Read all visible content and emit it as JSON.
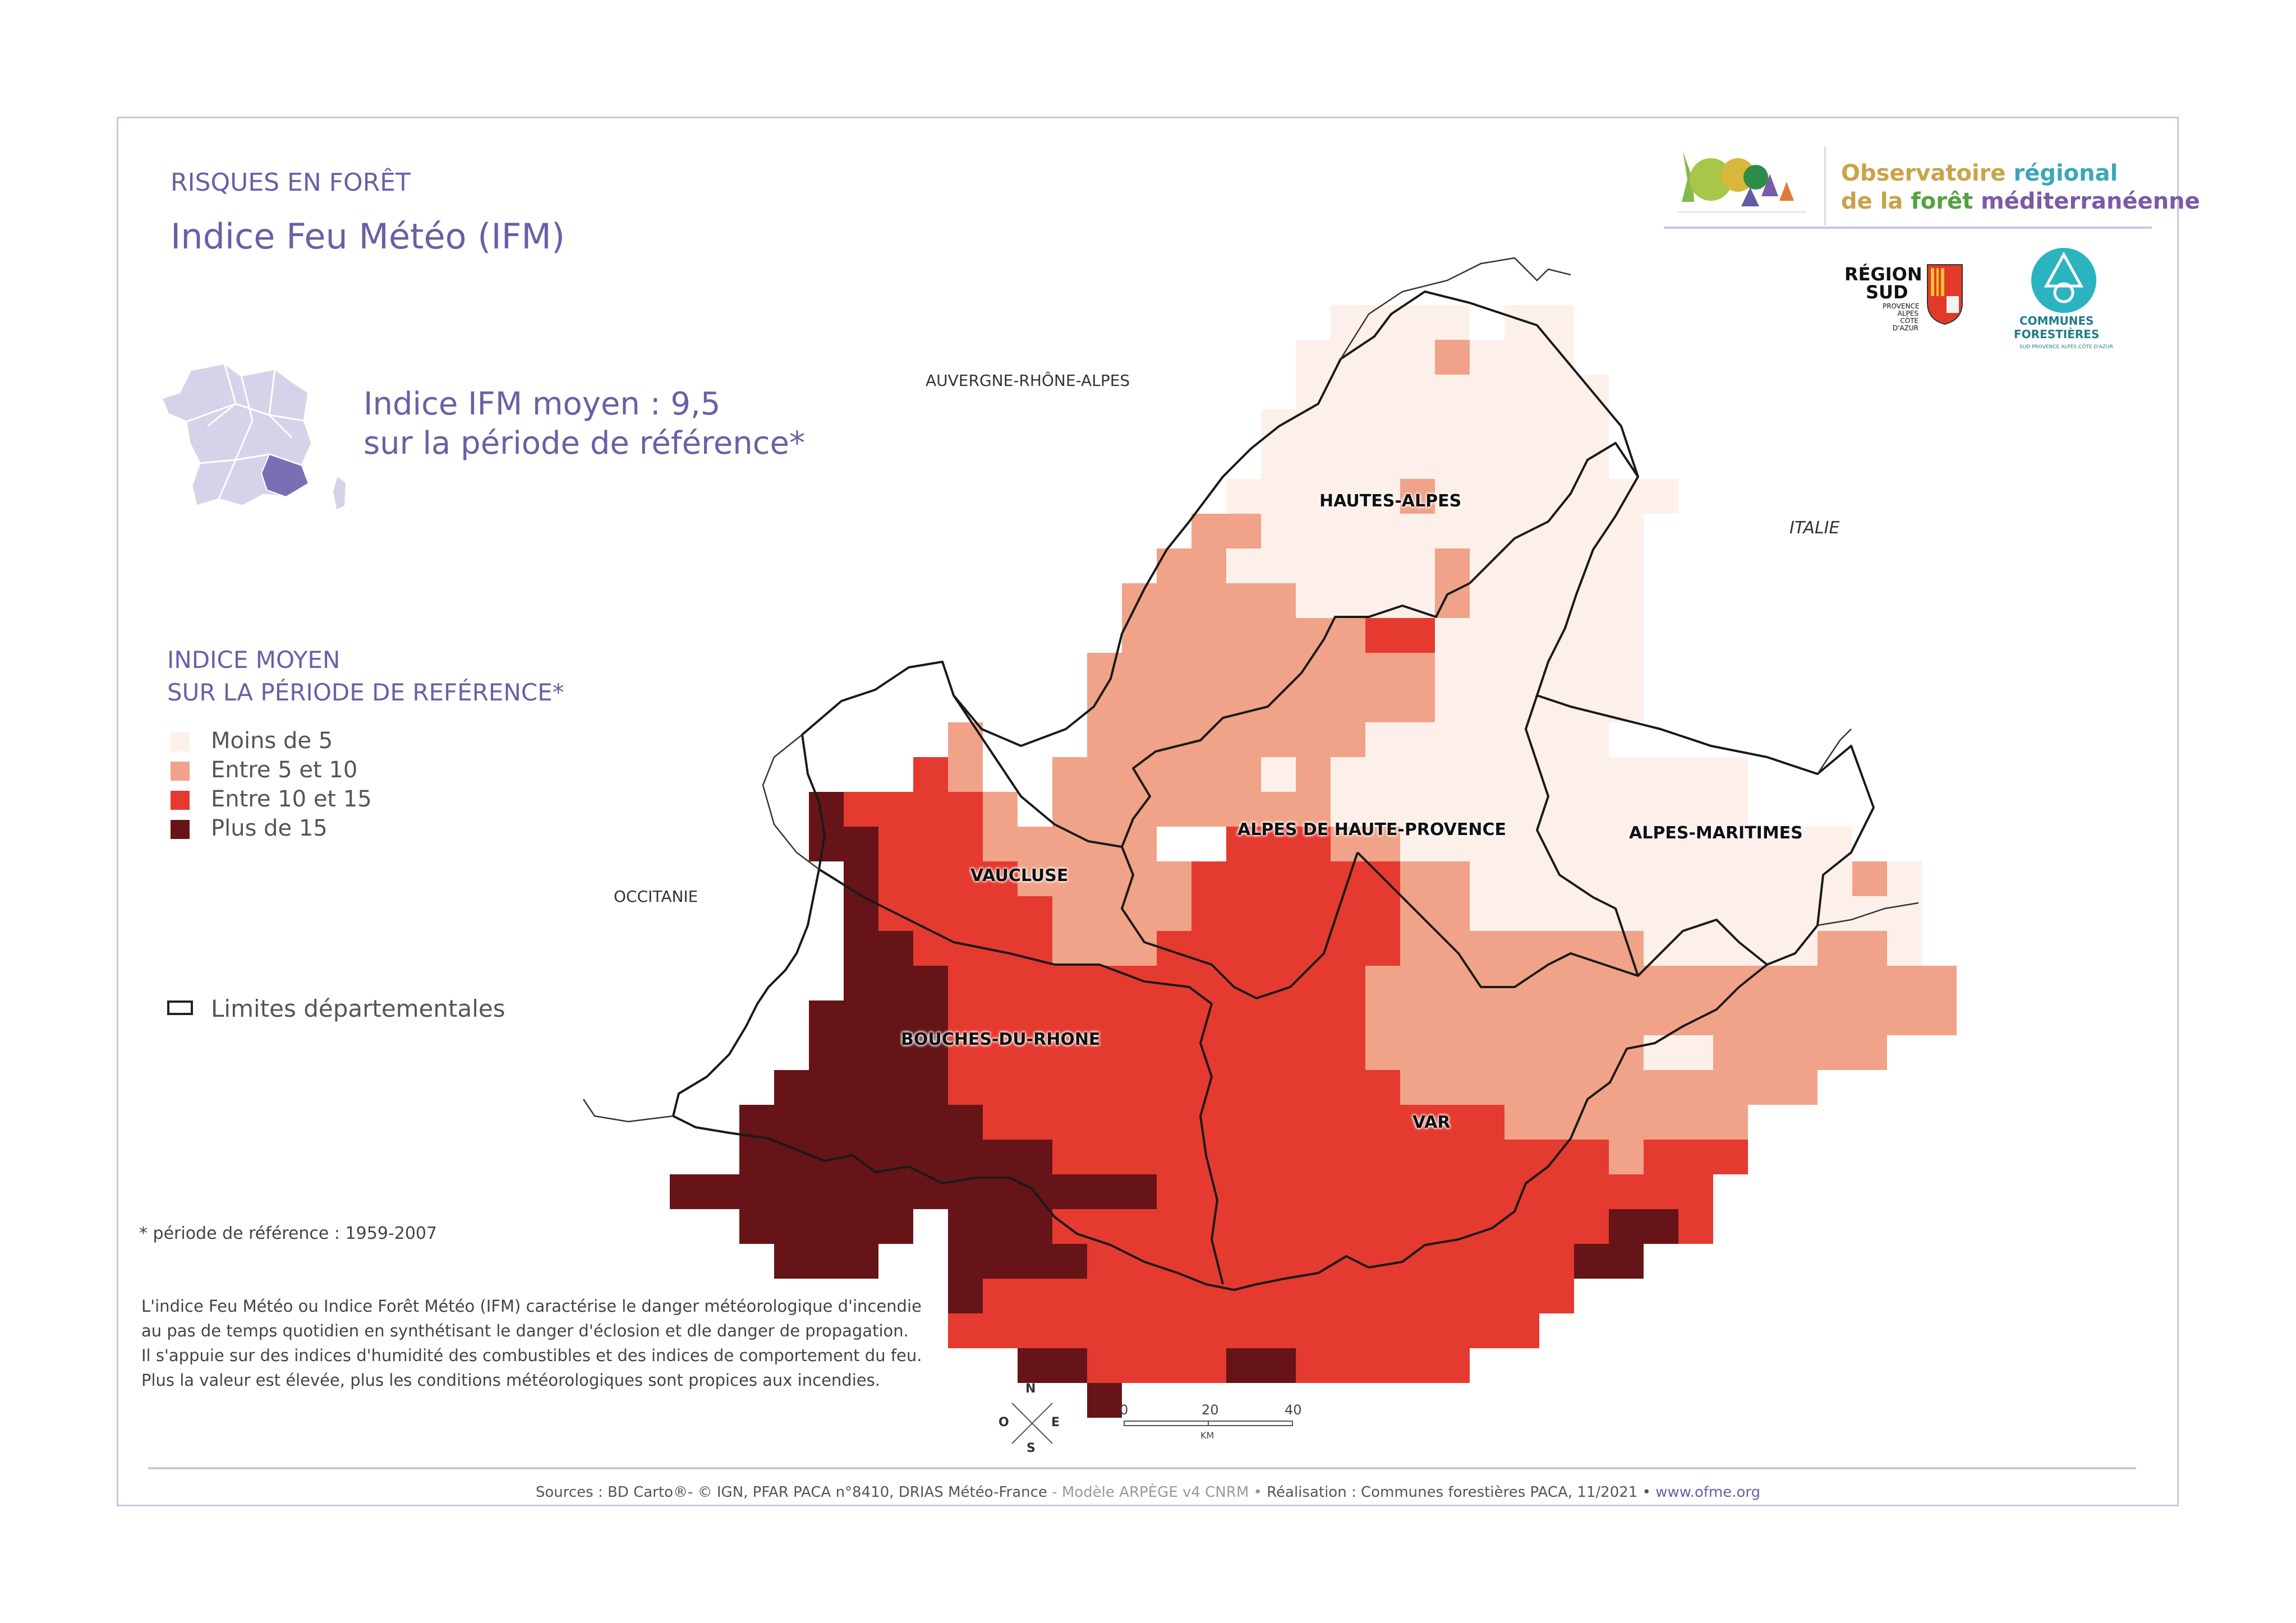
{
  "header": {
    "category": "RISQUES EN FORÊT",
    "title": "Indice Feu Météo (IFM)"
  },
  "summary": {
    "line1": "Indice IFM moyen : 9,5",
    "line2": "sur la période de référence*"
  },
  "legend": {
    "title_line1": "INDICE MOYEN",
    "title_line2": "SUR LA PÉRIODE DE REFÉRENCE*",
    "items": [
      {
        "label": "Moins de 5",
        "color": "#fdf0ea"
      },
      {
        "label": "Entre 5 et 10",
        "color": "#f0a388"
      },
      {
        "label": "Entre 10 et 15",
        "color": "#e53a30"
      },
      {
        "label": "Plus de 15",
        "color": "#661417"
      }
    ],
    "boundary_label": "Limites départementales"
  },
  "notes": {
    "reference_period": "* période de référence : 1959-2007",
    "description": [
      "L'indice Feu Météo ou Indice Forêt Météo (IFM) caractérise le danger météorologique d'incendie",
      "au pas de temps quotidien en synthétisant le danger d'éclosion et dle danger de propagation.",
      "Il s'appuie sur des indices d'humidité des combustibles et des indices de comportement du feu.",
      "Plus la valeur est élevée, plus les conditions météorologiques sont propices aux incendies."
    ]
  },
  "map": {
    "neighbors": {
      "north": "AUVERGNE-RHÔNE-ALPES",
      "west": "OCCITANIE",
      "east": "ITALIE"
    },
    "departments": {
      "hautes_alpes": "HAUTES-ALPES",
      "alpes_haute_provence": "ALPES DE HAUTE-PROVENCE",
      "alpes_maritimes": "ALPES-MARITIMES",
      "vaucluse": "VAUCLUSE",
      "bouches_du_rhone": "BOUCHES-DU-RHONE",
      "var": "VAR"
    },
    "scale": {
      "tick0": "0",
      "tick1": "20",
      "tick2": "40",
      "unit": "KM"
    },
    "compass": {
      "n": "N",
      "s": "S",
      "e": "E",
      "o": "O"
    }
  },
  "logos": {
    "observatoire_line1_a": "Observatoire",
    "observatoire_line1_b": "régional",
    "observatoire_line2_a": "de la",
    "observatoire_line2_b": "forêt",
    "observatoire_line2_c": "méditerranéenne",
    "region_line1": "RÉGION",
    "region_line2": "SUD",
    "region_sub": "PROVENCE ALPES CÔTE D'AZUR",
    "communes_line1": "COMMUNES",
    "communes_line2": "FORESTIÈRES",
    "communes_sub": "SUD PROVENCE ALPES CÔTE D'AZUR"
  },
  "footer": {
    "sources": "Sources : BD Carto®- © IGN, PFAR PACA n°8410, DRIAS Météo-France",
    "model": "- Modèle ARPÈGE v4 CNRM •",
    "realisation": "Réalisation : Communes forestières PACA, 11/2021 •",
    "website": "www.ofme.org"
  }
}
